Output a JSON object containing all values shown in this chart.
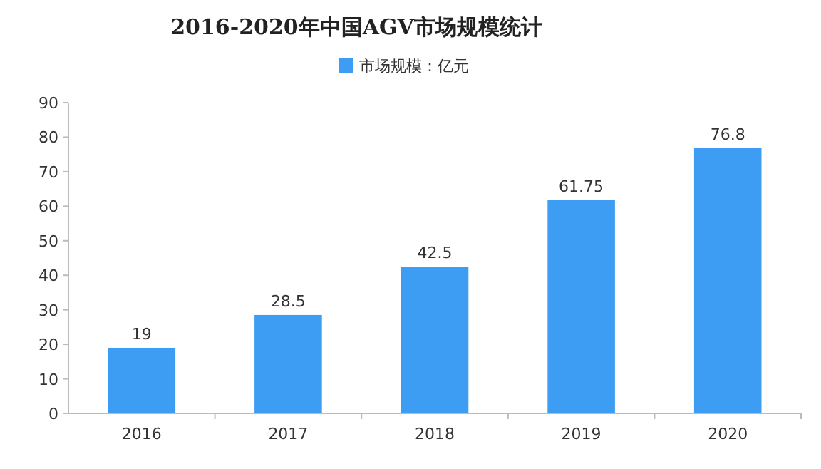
{
  "chart_data": {
    "type": "bar",
    "title": "2016-2020年中国AGV市场规模统计",
    "categories": [
      "2016",
      "2017",
      "2018",
      "2019",
      "2020"
    ],
    "series": [
      {
        "name": "市场规模：亿元",
        "color": "#3d9df3",
        "values": [
          19,
          28.5,
          42.5,
          61.75,
          76.8
        ]
      }
    ],
    "ylim": [
      0,
      90
    ],
    "yticks": [
      0,
      10,
      20,
      30,
      40,
      50,
      60,
      70,
      80,
      90
    ],
    "data_labels": true,
    "legend": "top"
  }
}
